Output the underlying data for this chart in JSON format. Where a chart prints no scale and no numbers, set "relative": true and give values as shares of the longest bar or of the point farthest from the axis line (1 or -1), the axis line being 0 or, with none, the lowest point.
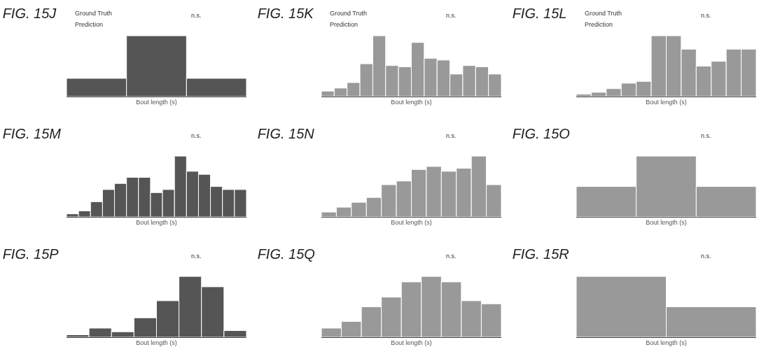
{
  "chart_data": [
    {
      "type": "bar",
      "title": "FIG. 15J",
      "xlabel": "Bout length (s)",
      "relative": true,
      "color": "#555555",
      "annotations": [
        "Ground Truth",
        "Prediction",
        "n.s."
      ],
      "categories": [
        null,
        null,
        null
      ],
      "values": [
        0.3,
        1,
        0.3
      ]
    },
    {
      "type": "bar",
      "title": "FIG. 15K",
      "xlabel": "Bout length (s)",
      "relative": true,
      "color": "#999999",
      "annotations": [
        "Ground Truth",
        "Prediction",
        "n.s."
      ],
      "categories": [
        null,
        null,
        null,
        null,
        null,
        null,
        null,
        null,
        null,
        null,
        null,
        null,
        null,
        null
      ],
      "values": [
        0.09,
        0.14,
        0.23,
        0.54,
        1,
        0.51,
        0.49,
        0.89,
        0.63,
        0.6,
        0.37,
        0.51,
        0.49,
        0.37
      ]
    },
    {
      "type": "bar",
      "title": "FIG. 15L",
      "xlabel": "Bout length (s)",
      "relative": true,
      "color": "#999999",
      "annotations": [
        "Ground Truth",
        "Prediction",
        "n.s."
      ],
      "categories": [
        null,
        null,
        null,
        null,
        null,
        null,
        null,
        null,
        null,
        null,
        null,
        null
      ],
      "values": [
        0.04,
        0.07,
        0.13,
        0.22,
        0.25,
        1,
        1,
        0.78,
        0.5,
        0.58,
        0.78,
        0.78
      ]
    },
    {
      "type": "bar",
      "title": "FIG. 15M",
      "xlabel": "Bout length (s)",
      "relative": true,
      "color": "#555555",
      "annotations": [
        "n.s."
      ],
      "categories": [
        null,
        null,
        null,
        null,
        null,
        null,
        null,
        null,
        null,
        null,
        null,
        null,
        null,
        null,
        null
      ],
      "values": [
        0.05,
        0.1,
        0.25,
        0.45,
        0.55,
        0.65,
        0.65,
        0.4,
        0.45,
        1,
        0.75,
        0.7,
        0.5,
        0.45,
        0.45
      ]
    },
    {
      "type": "bar",
      "title": "FIG. 15N",
      "xlabel": "Bout length (s)",
      "relative": true,
      "color": "#999999",
      "annotations": [
        "n.s."
      ],
      "categories": [
        null,
        null,
        null,
        null,
        null,
        null,
        null,
        null,
        null,
        null,
        null,
        null
      ],
      "values": [
        0.08,
        0.16,
        0.24,
        0.32,
        0.53,
        0.59,
        0.78,
        0.83,
        0.75,
        0.8,
        1,
        0.53
      ]
    },
    {
      "type": "bar",
      "title": "FIG. 15O",
      "xlabel": "Bout length (s)",
      "relative": true,
      "color": "#999999",
      "annotations": [
        "n.s."
      ],
      "categories": [
        null,
        null,
        null
      ],
      "values": [
        0.5,
        1,
        0.5
      ]
    },
    {
      "type": "bar",
      "title": "FIG. 15P",
      "xlabel": "Bout length (s)",
      "relative": true,
      "color": "#555555",
      "annotations": [
        "n.s."
      ],
      "categories": [
        null,
        null,
        null,
        null,
        null,
        null,
        null,
        null
      ],
      "values": [
        0.04,
        0.15,
        0.09,
        0.32,
        0.6,
        1,
        0.83,
        0.11
      ]
    },
    {
      "type": "bar",
      "title": "FIG. 15Q",
      "xlabel": "Bout length (s)",
      "relative": true,
      "color": "#999999",
      "annotations": [
        "n.s."
      ],
      "categories": [
        null,
        null,
        null,
        null,
        null,
        null,
        null,
        null,
        null
      ],
      "values": [
        0.15,
        0.26,
        0.5,
        0.66,
        0.91,
        1,
        0.91,
        0.6,
        0.55
      ]
    },
    {
      "type": "bar",
      "title": "FIG. 15R",
      "xlabel": "Bout length (s)",
      "relative": true,
      "color": "#999999",
      "annotations": [
        "n.s."
      ],
      "categories": [
        null,
        null
      ],
      "values": [
        1,
        0.5
      ]
    }
  ]
}
